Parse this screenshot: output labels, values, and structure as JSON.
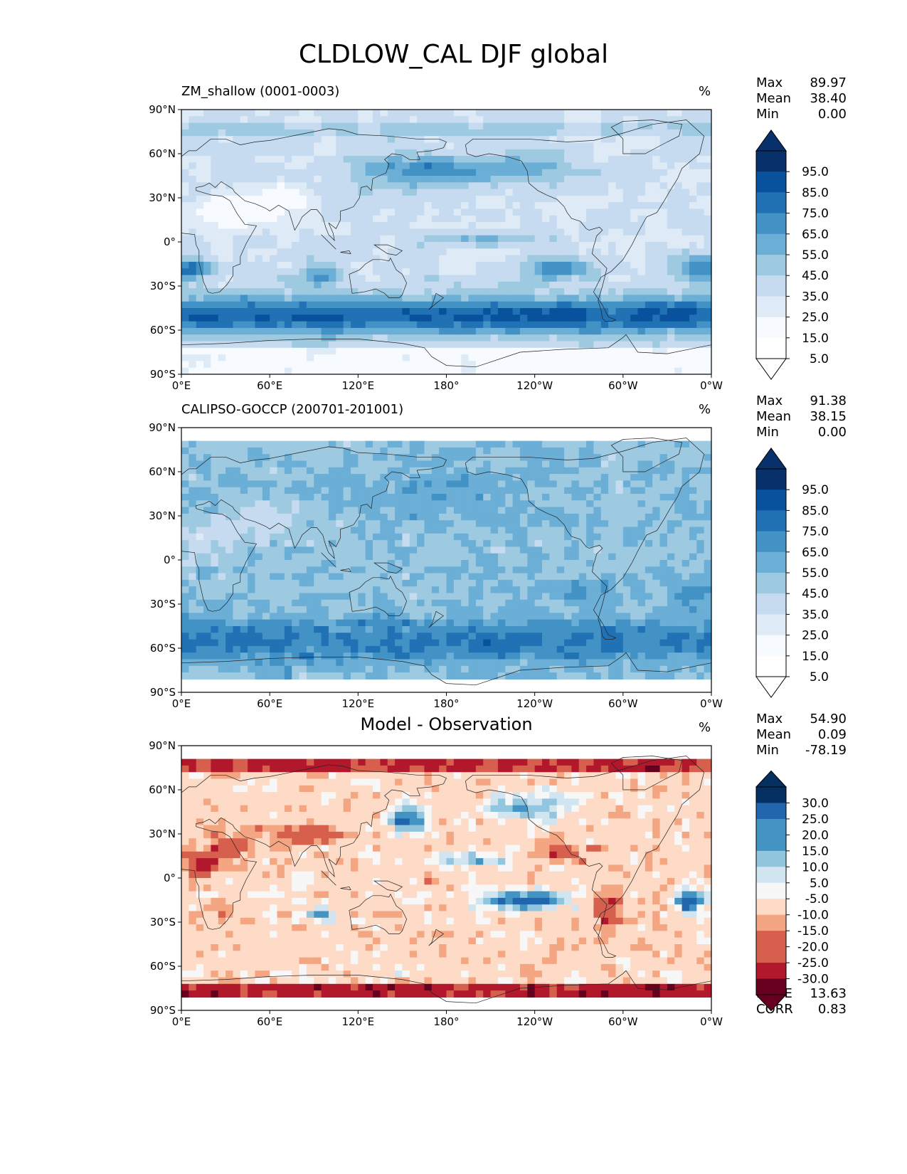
{
  "title": "CLDLOW_CAL DJF global",
  "colors": {
    "blues": [
      "#f7fbff",
      "#deebf7",
      "#c6dbef",
      "#9ecae1",
      "#6baed6",
      "#4292c6",
      "#2171b5",
      "#08519c",
      "#08306b"
    ],
    "diff": [
      "#67001f",
      "#b2182b",
      "#d6604d",
      "#f4a582",
      "#fddbc7",
      "#f7f7f7",
      "#d1e5f0",
      "#92c5de",
      "#4393c3",
      "#2166ac",
      "#053061"
    ]
  },
  "chart_data": [
    {
      "type": "heatmap",
      "title": "ZM_shallow (0001-0003)",
      "units": "%",
      "stats": {
        "max_label": "Max",
        "max": "89.97",
        "mean_label": "Mean",
        "mean": "38.40",
        "min_label": "Min",
        "min": "0.00"
      },
      "colorbar_labels": [
        "95.0",
        "85.0",
        "75.0",
        "65.0",
        "55.0",
        "45.0",
        "35.0",
        "25.0",
        "15.0",
        "5.0"
      ],
      "ylim": [
        -90,
        90
      ],
      "xlim": [
        0,
        360
      ],
      "yticks": [
        "90°N",
        "60°N",
        "30°N",
        "0°",
        "30°S",
        "60°S",
        "90°S"
      ],
      "xticks": [
        "0°E",
        "60°E",
        "120°E",
        "180°",
        "120°W",
        "60°W",
        "0°W"
      ]
    },
    {
      "type": "heatmap",
      "title": "CALIPSO-GOCCP (200701-201001)",
      "units": "%",
      "stats": {
        "max_label": "Max",
        "max": "91.38",
        "mean_label": "Mean",
        "mean": "38.15",
        "min_label": "Min",
        "min": "0.00"
      },
      "colorbar_labels": [
        "95.0",
        "85.0",
        "75.0",
        "65.0",
        "55.0",
        "45.0",
        "35.0",
        "25.0",
        "15.0",
        "5.0"
      ],
      "ylim": [
        -90,
        90
      ],
      "xlim": [
        0,
        360
      ],
      "yticks": [
        "90°N",
        "60°N",
        "30°N",
        "0°",
        "30°S",
        "60°S",
        "90°S"
      ],
      "xticks": [
        "0°E",
        "60°E",
        "120°E",
        "180°",
        "120°W",
        "60°W",
        "0°W"
      ]
    },
    {
      "type": "heatmap",
      "title": "Model - Observation",
      "units": "%",
      "stats": {
        "max_label": "Max",
        "max": "54.90",
        "mean_label": "Mean",
        "mean": "0.09",
        "min_label": "Min",
        "min": "-78.19"
      },
      "extra_stats": {
        "rmse_label": "RMSE",
        "rmse": "13.63",
        "corr_label": "CORR",
        "corr": "0.83"
      },
      "colorbar_labels": [
        "30.0",
        "25.0",
        "20.0",
        "15.0",
        "10.0",
        "5.0",
        "-5.0",
        "-10.0",
        "-15.0",
        "-20.0",
        "-25.0",
        "-30.0"
      ],
      "ylim": [
        -90,
        90
      ],
      "xlim": [
        0,
        360
      ],
      "yticks": [
        "90°N",
        "60°N",
        "30°N",
        "0°",
        "30°S",
        "60°S",
        "90°S"
      ],
      "xticks": [
        "0°E",
        "60°E",
        "120°E",
        "180°",
        "120°W",
        "60°W",
        "0°W"
      ]
    }
  ]
}
